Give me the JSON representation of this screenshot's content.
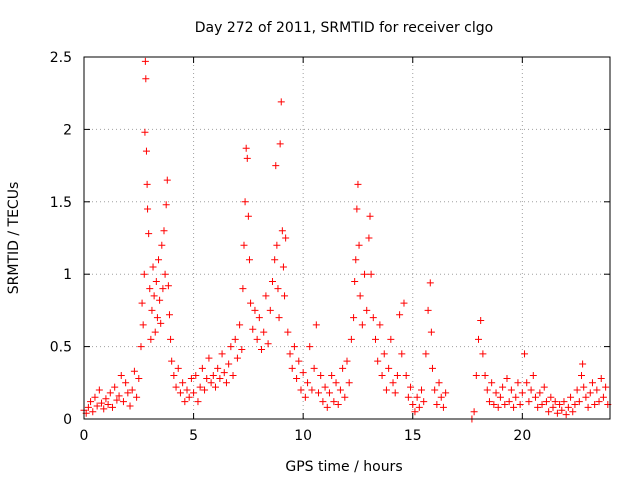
{
  "chart_data": {
    "type": "scatter",
    "title": "Day 272 of 2011, SRMTID for receiver clgo",
    "xlabel": "GPS time / hours",
    "ylabel": "SRMTID / TECUs",
    "xlim": [
      0,
      24
    ],
    "ylim": [
      0,
      2.5
    ],
    "xticks": [
      0,
      5,
      10,
      15,
      20
    ],
    "xtick_labels": [
      "0",
      "5",
      "10",
      "15",
      "20"
    ],
    "yticks": [
      0,
      0.5,
      1,
      1.5,
      2,
      2.5
    ],
    "ytick_labels": [
      "0",
      "0.5",
      "1",
      "1.5",
      "2",
      "2.5"
    ],
    "grid": true,
    "marker": "+",
    "color": "#ff0000",
    "series": [
      {
        "name": "SRMTID",
        "points": [
          [
            0.0,
            0.06
          ],
          [
            0.1,
            0.04
          ],
          [
            0.2,
            0.08
          ],
          [
            0.3,
            0.12
          ],
          [
            0.4,
            0.05
          ],
          [
            0.5,
            0.15
          ],
          [
            0.6,
            0.09
          ],
          [
            0.7,
            0.2
          ],
          [
            0.8,
            0.11
          ],
          [
            0.9,
            0.07
          ],
          [
            1.0,
            0.14
          ],
          [
            1.1,
            0.1
          ],
          [
            1.2,
            0.18
          ],
          [
            1.3,
            0.08
          ],
          [
            1.4,
            0.22
          ],
          [
            1.5,
            0.13
          ],
          [
            1.6,
            0.16
          ],
          [
            1.7,
            0.3
          ],
          [
            1.8,
            0.12
          ],
          [
            1.9,
            0.25
          ],
          [
            2.0,
            0.18
          ],
          [
            2.1,
            0.09
          ],
          [
            2.2,
            0.2
          ],
          [
            2.3,
            0.33
          ],
          [
            2.4,
            0.15
          ],
          [
            2.5,
            0.28
          ],
          [
            2.6,
            0.5
          ],
          [
            2.65,
            0.8
          ],
          [
            2.7,
            0.65
          ],
          [
            2.75,
            1.0
          ],
          [
            2.78,
            1.98
          ],
          [
            2.8,
            2.47
          ],
          [
            2.82,
            2.35
          ],
          [
            2.85,
            1.85
          ],
          [
            2.88,
            1.62
          ],
          [
            2.9,
            1.45
          ],
          [
            2.95,
            1.28
          ],
          [
            3.0,
            0.9
          ],
          [
            3.05,
            0.55
          ],
          [
            3.1,
            0.75
          ],
          [
            3.15,
            1.05
          ],
          [
            3.2,
            0.85
          ],
          [
            3.25,
            0.6
          ],
          [
            3.3,
            0.95
          ],
          [
            3.35,
            0.7
          ],
          [
            3.4,
            1.1
          ],
          [
            3.45,
            0.82
          ],
          [
            3.5,
            0.66
          ],
          [
            3.55,
            1.2
          ],
          [
            3.6,
            0.9
          ],
          [
            3.65,
            1.3
          ],
          [
            3.7,
            1.0
          ],
          [
            3.75,
            1.48
          ],
          [
            3.8,
            1.65
          ],
          [
            3.85,
            0.92
          ],
          [
            3.9,
            0.72
          ],
          [
            3.95,
            0.55
          ],
          [
            4.0,
            0.4
          ],
          [
            4.1,
            0.3
          ],
          [
            4.2,
            0.22
          ],
          [
            4.3,
            0.35
          ],
          [
            4.4,
            0.18
          ],
          [
            4.5,
            0.25
          ],
          [
            4.6,
            0.12
          ],
          [
            4.7,
            0.2
          ],
          [
            4.8,
            0.15
          ],
          [
            4.9,
            0.28
          ],
          [
            5.0,
            0.18
          ],
          [
            5.1,
            0.3
          ],
          [
            5.2,
            0.12
          ],
          [
            5.3,
            0.22
          ],
          [
            5.4,
            0.35
          ],
          [
            5.5,
            0.2
          ],
          [
            5.6,
            0.28
          ],
          [
            5.7,
            0.42
          ],
          [
            5.8,
            0.25
          ],
          [
            5.9,
            0.3
          ],
          [
            6.0,
            0.22
          ],
          [
            6.1,
            0.35
          ],
          [
            6.2,
            0.28
          ],
          [
            6.3,
            0.45
          ],
          [
            6.4,
            0.32
          ],
          [
            6.5,
            0.25
          ],
          [
            6.6,
            0.38
          ],
          [
            6.7,
            0.5
          ],
          [
            6.8,
            0.3
          ],
          [
            6.9,
            0.55
          ],
          [
            7.0,
            0.42
          ],
          [
            7.1,
            0.65
          ],
          [
            7.2,
            0.48
          ],
          [
            7.25,
            0.9
          ],
          [
            7.3,
            1.2
          ],
          [
            7.35,
            1.5
          ],
          [
            7.4,
            1.87
          ],
          [
            7.45,
            1.8
          ],
          [
            7.5,
            1.4
          ],
          [
            7.55,
            1.1
          ],
          [
            7.6,
            0.8
          ],
          [
            7.7,
            0.62
          ],
          [
            7.8,
            0.75
          ],
          [
            7.9,
            0.55
          ],
          [
            8.0,
            0.7
          ],
          [
            8.1,
            0.48
          ],
          [
            8.2,
            0.6
          ],
          [
            8.3,
            0.85
          ],
          [
            8.4,
            0.52
          ],
          [
            8.5,
            0.75
          ],
          [
            8.6,
            0.95
          ],
          [
            8.7,
            1.1
          ],
          [
            8.75,
            1.75
          ],
          [
            8.8,
            1.2
          ],
          [
            8.85,
            0.9
          ],
          [
            8.9,
            0.7
          ],
          [
            8.95,
            1.9
          ],
          [
            9.0,
            2.19
          ],
          [
            9.05,
            1.3
          ],
          [
            9.1,
            1.05
          ],
          [
            9.15,
            0.85
          ],
          [
            9.2,
            1.25
          ],
          [
            9.3,
            0.6
          ],
          [
            9.4,
            0.45
          ],
          [
            9.5,
            0.35
          ],
          [
            9.6,
            0.5
          ],
          [
            9.7,
            0.28
          ],
          [
            9.8,
            0.4
          ],
          [
            9.9,
            0.2
          ],
          [
            10.0,
            0.32
          ],
          [
            10.1,
            0.15
          ],
          [
            10.2,
            0.25
          ],
          [
            10.3,
            0.5
          ],
          [
            10.4,
            0.2
          ],
          [
            10.5,
            0.35
          ],
          [
            10.6,
            0.65
          ],
          [
            10.7,
            0.18
          ],
          [
            10.8,
            0.3
          ],
          [
            10.9,
            0.12
          ],
          [
            11.0,
            0.22
          ],
          [
            11.1,
            0.08
          ],
          [
            11.2,
            0.18
          ],
          [
            11.3,
            0.3
          ],
          [
            11.4,
            0.12
          ],
          [
            11.5,
            0.25
          ],
          [
            11.6,
            0.1
          ],
          [
            11.7,
            0.2
          ],
          [
            11.8,
            0.35
          ],
          [
            11.9,
            0.15
          ],
          [
            12.0,
            0.4
          ],
          [
            12.1,
            0.25
          ],
          [
            12.2,
            0.55
          ],
          [
            12.3,
            0.7
          ],
          [
            12.35,
            0.95
          ],
          [
            12.4,
            1.1
          ],
          [
            12.45,
            1.45
          ],
          [
            12.5,
            1.62
          ],
          [
            12.55,
            1.2
          ],
          [
            12.6,
            0.85
          ],
          [
            12.7,
            0.65
          ],
          [
            12.8,
            1.0
          ],
          [
            12.9,
            0.75
          ],
          [
            13.0,
            1.25
          ],
          [
            13.05,
            1.4
          ],
          [
            13.1,
            1.0
          ],
          [
            13.2,
            0.7
          ],
          [
            13.3,
            0.55
          ],
          [
            13.4,
            0.4
          ],
          [
            13.5,
            0.65
          ],
          [
            13.6,
            0.3
          ],
          [
            13.7,
            0.45
          ],
          [
            13.8,
            0.2
          ],
          [
            13.9,
            0.35
          ],
          [
            14.0,
            0.55
          ],
          [
            14.1,
            0.25
          ],
          [
            14.2,
            0.18
          ],
          [
            14.3,
            0.3
          ],
          [
            14.4,
            0.72
          ],
          [
            14.5,
            0.45
          ],
          [
            14.6,
            0.8
          ],
          [
            14.7,
            0.3
          ],
          [
            14.8,
            0.15
          ],
          [
            14.9,
            0.22
          ],
          [
            15.0,
            0.1
          ],
          [
            15.1,
            0.05
          ],
          [
            15.2,
            0.15
          ],
          [
            15.3,
            0.08
          ],
          [
            15.4,
            0.2
          ],
          [
            15.5,
            0.12
          ],
          [
            15.6,
            0.45
          ],
          [
            15.7,
            0.75
          ],
          [
            15.8,
            0.94
          ],
          [
            15.85,
            0.6
          ],
          [
            15.9,
            0.35
          ],
          [
            16.0,
            0.2
          ],
          [
            16.1,
            0.1
          ],
          [
            16.2,
            0.25
          ],
          [
            16.3,
            0.15
          ],
          [
            16.4,
            0.08
          ],
          [
            16.5,
            0.18
          ],
          [
            17.7,
            0.0
          ],
          [
            17.8,
            0.05
          ],
          [
            17.9,
            0.3
          ],
          [
            18.0,
            0.55
          ],
          [
            18.1,
            0.68
          ],
          [
            18.2,
            0.45
          ],
          [
            18.3,
            0.3
          ],
          [
            18.4,
            0.2
          ],
          [
            18.5,
            0.12
          ],
          [
            18.6,
            0.25
          ],
          [
            18.7,
            0.1
          ],
          [
            18.8,
            0.18
          ],
          [
            18.9,
            0.08
          ],
          [
            19.0,
            0.15
          ],
          [
            19.1,
            0.22
          ],
          [
            19.2,
            0.1
          ],
          [
            19.3,
            0.28
          ],
          [
            19.4,
            0.12
          ],
          [
            19.5,
            0.2
          ],
          [
            19.6,
            0.08
          ],
          [
            19.7,
            0.15
          ],
          [
            19.8,
            0.25
          ],
          [
            19.9,
            0.1
          ],
          [
            20.0,
            0.18
          ],
          [
            20.1,
            0.45
          ],
          [
            20.2,
            0.25
          ],
          [
            20.3,
            0.12
          ],
          [
            20.4,
            0.2
          ],
          [
            20.5,
            0.3
          ],
          [
            20.6,
            0.15
          ],
          [
            20.7,
            0.08
          ],
          [
            20.8,
            0.18
          ],
          [
            20.9,
            0.1
          ],
          [
            21.0,
            0.22
          ],
          [
            21.1,
            0.12
          ],
          [
            21.2,
            0.05
          ],
          [
            21.3,
            0.15
          ],
          [
            21.4,
            0.08
          ],
          [
            21.5,
            0.12
          ],
          [
            21.6,
            0.04
          ],
          [
            21.7,
            0.1
          ],
          [
            21.8,
            0.06
          ],
          [
            21.9,
            0.12
          ],
          [
            22.0,
            0.03
          ],
          [
            22.1,
            0.08
          ],
          [
            22.2,
            0.15
          ],
          [
            22.3,
            0.05
          ],
          [
            22.4,
            0.1
          ],
          [
            22.5,
            0.2
          ],
          [
            22.6,
            0.12
          ],
          [
            22.7,
            0.3
          ],
          [
            22.75,
            0.38
          ],
          [
            22.8,
            0.22
          ],
          [
            22.9,
            0.15
          ],
          [
            23.0,
            0.08
          ],
          [
            23.1,
            0.18
          ],
          [
            23.2,
            0.25
          ],
          [
            23.3,
            0.1
          ],
          [
            23.4,
            0.2
          ],
          [
            23.5,
            0.12
          ],
          [
            23.6,
            0.28
          ],
          [
            23.7,
            0.15
          ],
          [
            23.8,
            0.22
          ],
          [
            23.9,
            0.1
          ]
        ]
      }
    ]
  }
}
